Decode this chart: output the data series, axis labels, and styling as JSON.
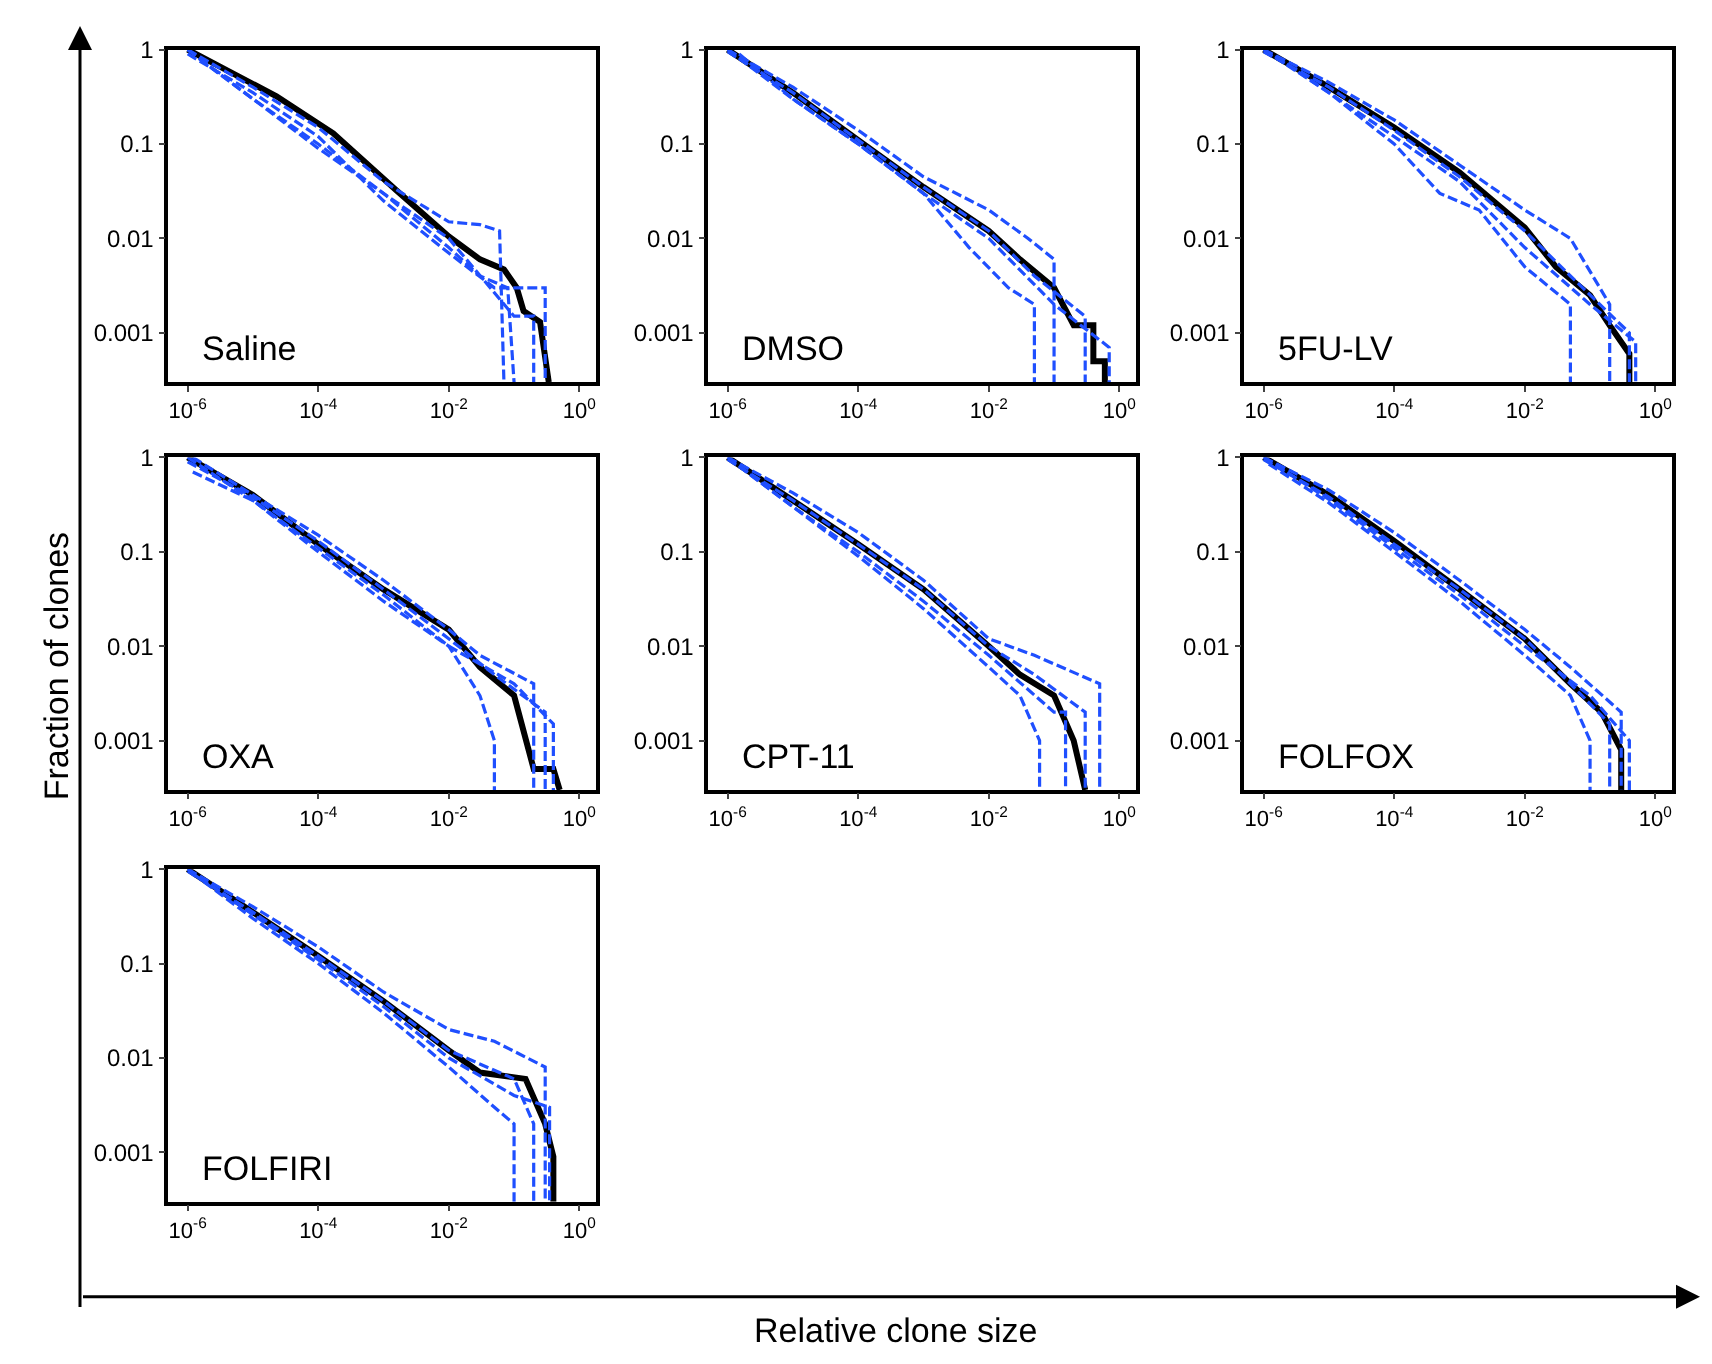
{
  "chart_data": [
    {
      "type": "line",
      "title": "Saline",
      "xlabel": "Relative clone size",
      "ylabel": "Fraction of clones",
      "log": "xy",
      "marker": "none",
      "xlim": [
        5e-07,
        1.8
      ],
      "ylim": [
        0.0003,
        1
      ],
      "xticks": [
        {
          "value": 1e-06,
          "label": "10$^{-6}$"
        },
        {
          "value": 0.0001,
          "label": "10$^{-4}$"
        },
        {
          "value": 0.01,
          "label": "10$^{-2}$"
        },
        {
          "value": 1,
          "label": "10$^{0}$"
        }
      ],
      "yticks": [
        1,
        0.1,
        0.01,
        0.001
      ],
      "series": [
        {
          "color": "#1f4fff",
          "line_style": "dashed",
          "x": [
            1e-06,
            1e-05,
            0.0001,
            0.001,
            0.01,
            0.03,
            0.06,
            0.07
          ],
          "values": [
            1,
            0.4,
            0.15,
            0.04,
            0.015,
            0.014,
            0.012,
            0.0003
          ]
        },
        {
          "color": "#1f4fff",
          "line_style": "dashed",
          "x": [
            1.5e-06,
            1e-05,
            0.0001,
            0.001,
            0.01,
            0.03,
            0.08,
            0.1
          ],
          "values": [
            0.8,
            0.3,
            0.1,
            0.03,
            0.008,
            0.004,
            0.003,
            0.0003
          ]
        },
        {
          "color": "#1f4fff",
          "line_style": "dashed",
          "x": [
            1e-06,
            1e-05,
            0.0001,
            0.001,
            0.01,
            0.05,
            0.3,
            0.3
          ],
          "values": [
            0.9,
            0.35,
            0.12,
            0.025,
            0.007,
            0.003,
            0.003,
            0.0003
          ]
        },
        {
          "color": "#1f4fff",
          "line_style": "dashed",
          "x": [
            1e-06,
            1e-05,
            0.0001,
            0.001,
            0.01,
            0.1,
            0.2,
            0.2
          ],
          "values": [
            1,
            0.3,
            0.09,
            0.03,
            0.01,
            0.0015,
            0.0015,
            0.0003
          ]
        },
        {
          "color": "#000000",
          "line_style": "solid",
          "x": [
            1e-06,
            2.3e-05,
            0.00017,
            0.0016,
            0.01,
            0.03,
            0.07,
            0.11,
            0.14,
            0.25,
            0.34
          ],
          "values": [
            1,
            0.32,
            0.13,
            0.032,
            0.0105,
            0.006,
            0.0047,
            0.003,
            0.0017,
            0.0013,
            0.0003
          ]
        }
      ]
    },
    {
      "type": "line",
      "title": "DMSO",
      "log": "xy",
      "marker": "none",
      "xlim": [
        5e-07,
        1.8
      ],
      "ylim": [
        0.0003,
        1
      ],
      "xticks": [
        {
          "value": 1e-06,
          "label": "10$^{-6}$"
        },
        {
          "value": 0.0001,
          "label": "10$^{-4}$"
        },
        {
          "value": 0.01,
          "label": "10$^{-2}$"
        },
        {
          "value": 1,
          "label": "10$^{0}$"
        }
      ],
      "yticks": [
        1,
        0.1,
        0.01,
        0.001
      ],
      "series": [
        {
          "color": "#1f4fff",
          "line_style": "dashed",
          "x": [
            1e-06,
            1e-05,
            0.0001,
            0.001,
            0.01,
            0.04,
            0.1,
            0.1
          ],
          "values": [
            1,
            0.4,
            0.14,
            0.045,
            0.02,
            0.01,
            0.006,
            0.0003
          ]
        },
        {
          "color": "#1f4fff",
          "line_style": "dashed",
          "x": [
            1.5e-06,
            1e-05,
            0.0001,
            0.001,
            0.005,
            0.02,
            0.05,
            0.05
          ],
          "values": [
            0.9,
            0.3,
            0.1,
            0.03,
            0.008,
            0.003,
            0.002,
            0.0003
          ]
        },
        {
          "color": "#1f4fff",
          "line_style": "dashed",
          "x": [
            1e-06,
            1e-05,
            0.0001,
            0.001,
            0.01,
            0.05,
            0.3,
            0.3
          ],
          "values": [
            0.95,
            0.35,
            0.11,
            0.035,
            0.012,
            0.004,
            0.0015,
            0.0003
          ]
        },
        {
          "color": "#1f4fff",
          "line_style": "dashed",
          "x": [
            1e-06,
            1e-05,
            0.0001,
            0.001,
            0.01,
            0.1,
            0.7,
            0.7
          ],
          "values": [
            1,
            0.3,
            0.1,
            0.03,
            0.01,
            0.002,
            0.0007,
            0.0003
          ]
        },
        {
          "color": "#000000",
          "line_style": "solid",
          "x": [
            1e-06,
            1e-05,
            0.0001,
            0.001,
            0.01,
            0.03,
            0.1,
            0.2,
            0.4,
            0.4,
            0.6,
            0.6
          ],
          "values": [
            1,
            0.35,
            0.11,
            0.035,
            0.012,
            0.006,
            0.003,
            0.0012,
            0.0012,
            0.0005,
            0.0005,
            0.0003
          ]
        }
      ]
    },
    {
      "type": "line",
      "title": "5FU-LV",
      "log": "xy",
      "marker": "none",
      "xlim": [
        5e-07,
        1.8
      ],
      "ylim": [
        0.0003,
        1
      ],
      "xticks": [
        {
          "value": 1e-06,
          "label": "10$^{-6}$"
        },
        {
          "value": 0.0001,
          "label": "10$^{-4}$"
        },
        {
          "value": 0.01,
          "label": "10$^{-2}$"
        },
        {
          "value": 1,
          "label": "10$^{0}$"
        }
      ],
      "yticks": [
        1,
        0.1,
        0.01,
        0.001
      ],
      "series": [
        {
          "color": "#1f4fff",
          "line_style": "dashed",
          "x": [
            1e-06,
            1e-05,
            0.0001,
            0.001,
            0.01,
            0.05,
            0.2,
            0.2
          ],
          "values": [
            1,
            0.45,
            0.18,
            0.06,
            0.02,
            0.01,
            0.002,
            0.0003
          ]
        },
        {
          "color": "#1f4fff",
          "line_style": "dashed",
          "x": [
            1.5e-06,
            1e-05,
            0.0001,
            0.0005,
            0.002,
            0.01,
            0.05,
            0.05
          ],
          "values": [
            0.85,
            0.35,
            0.1,
            0.03,
            0.02,
            0.005,
            0.002,
            0.0003
          ]
        },
        {
          "color": "#1f4fff",
          "line_style": "dashed",
          "x": [
            1e-06,
            1e-05,
            0.0001,
            0.001,
            0.01,
            0.05,
            0.4,
            0.4
          ],
          "values": [
            0.95,
            0.4,
            0.14,
            0.045,
            0.012,
            0.004,
            0.001,
            0.0003
          ]
        },
        {
          "color": "#1f4fff",
          "line_style": "dashed",
          "x": [
            1e-06,
            1e-05,
            0.0001,
            0.001,
            0.01,
            0.1,
            0.5,
            0.5
          ],
          "values": [
            1,
            0.35,
            0.12,
            0.04,
            0.008,
            0.002,
            0.0008,
            0.0003
          ]
        },
        {
          "color": "#000000",
          "line_style": "solid",
          "x": [
            1e-06,
            1e-05,
            0.0001,
            0.001,
            0.01,
            0.03,
            0.1,
            0.2,
            0.4,
            0.4
          ],
          "values": [
            1,
            0.4,
            0.15,
            0.05,
            0.013,
            0.005,
            0.0025,
            0.0012,
            0.0006,
            0.0003
          ]
        }
      ]
    },
    {
      "type": "line",
      "title": "OXA",
      "log": "xy",
      "marker": "none",
      "xlim": [
        5e-07,
        1.8
      ],
      "ylim": [
        0.0003,
        1
      ],
      "xticks": [
        {
          "value": 1e-06,
          "label": "10$^{-6}$"
        },
        {
          "value": 0.0001,
          "label": "10$^{-4}$"
        },
        {
          "value": 0.01,
          "label": "10$^{-2}$"
        },
        {
          "value": 1,
          "label": "10$^{0}$"
        }
      ],
      "yticks": [
        1,
        0.1,
        0.01,
        0.001
      ],
      "series": [
        {
          "color": "#1f4fff",
          "line_style": "dashed",
          "x": [
            1.2e-06,
            1e-05,
            0.0001,
            0.001,
            0.01,
            0.03,
            0.2,
            0.2
          ],
          "values": [
            1,
            0.4,
            0.15,
            0.05,
            0.015,
            0.008,
            0.004,
            0.0003
          ]
        },
        {
          "color": "#1f4fff",
          "line_style": "dashed",
          "x": [
            1.2e-06,
            1e-05,
            0.0001,
            0.001,
            0.01,
            0.03,
            0.05,
            0.05
          ],
          "values": [
            0.7,
            0.35,
            0.1,
            0.03,
            0.01,
            0.003,
            0.001,
            0.0003
          ]
        },
        {
          "color": "#1f4fff",
          "line_style": "dashed",
          "x": [
            1e-06,
            1e-05,
            0.0001,
            0.001,
            0.01,
            0.05,
            0.3,
            0.3
          ],
          "values": [
            0.9,
            0.38,
            0.13,
            0.04,
            0.012,
            0.005,
            0.002,
            0.0003
          ]
        },
        {
          "color": "#1f4fff",
          "line_style": "dashed",
          "x": [
            1e-06,
            1e-05,
            0.0001,
            0.001,
            0.01,
            0.1,
            0.4,
            0.4
          ],
          "values": [
            1,
            0.35,
            0.11,
            0.035,
            0.01,
            0.004,
            0.0015,
            0.0003
          ]
        },
        {
          "color": "#000000",
          "line_style": "solid",
          "x": [
            1e-06,
            1e-05,
            0.0001,
            0.001,
            0.01,
            0.03,
            0.1,
            0.2,
            0.4,
            0.5
          ],
          "values": [
            1,
            0.4,
            0.12,
            0.04,
            0.015,
            0.006,
            0.003,
            0.0005,
            0.0005,
            0.0003
          ]
        }
      ]
    },
    {
      "type": "line",
      "title": "CPT-11",
      "log": "xy",
      "marker": "none",
      "xlim": [
        5e-07,
        1.8
      ],
      "ylim": [
        0.0003,
        1
      ],
      "xticks": [
        {
          "value": 1e-06,
          "label": "10$^{-6}$"
        },
        {
          "value": 0.0001,
          "label": "10$^{-4}$"
        },
        {
          "value": 0.01,
          "label": "10$^{-2}$"
        },
        {
          "value": 1,
          "label": "10$^{0}$"
        }
      ],
      "yticks": [
        1,
        0.1,
        0.01,
        0.001
      ],
      "series": [
        {
          "color": "#1f4fff",
          "line_style": "dashed",
          "x": [
            1e-06,
            1e-05,
            0.0001,
            0.001,
            0.01,
            0.05,
            0.5,
            0.5
          ],
          "values": [
            1,
            0.42,
            0.16,
            0.05,
            0.012,
            0.008,
            0.004,
            0.0003
          ]
        },
        {
          "color": "#1f4fff",
          "line_style": "dashed",
          "x": [
            1.5e-06,
            1e-05,
            0.0001,
            0.001,
            0.01,
            0.03,
            0.06,
            0.06
          ],
          "values": [
            0.8,
            0.3,
            0.09,
            0.025,
            0.006,
            0.003,
            0.001,
            0.0003
          ]
        },
        {
          "color": "#1f4fff",
          "line_style": "dashed",
          "x": [
            1e-06,
            1e-05,
            0.0001,
            0.001,
            0.01,
            0.05,
            0.3,
            0.3
          ],
          "values": [
            0.95,
            0.35,
            0.12,
            0.04,
            0.01,
            0.005,
            0.002,
            0.0003
          ]
        },
        {
          "color": "#1f4fff",
          "line_style": "dashed",
          "x": [
            1e-06,
            1e-05,
            0.0001,
            0.001,
            0.01,
            0.1,
            0.15,
            0.15
          ],
          "values": [
            1,
            0.3,
            0.1,
            0.03,
            0.008,
            0.002,
            0.002,
            0.0003
          ]
        },
        {
          "color": "#000000",
          "line_style": "solid",
          "x": [
            1e-06,
            1e-05,
            0.0001,
            0.001,
            0.01,
            0.03,
            0.1,
            0.2,
            0.3
          ],
          "values": [
            1,
            0.35,
            0.12,
            0.04,
            0.01,
            0.005,
            0.003,
            0.001,
            0.0003
          ]
        }
      ]
    },
    {
      "type": "line",
      "title": "FOLFOX",
      "log": "xy",
      "marker": "none",
      "xlim": [
        5e-07,
        1.8
      ],
      "ylim": [
        0.0003,
        1
      ],
      "xticks": [
        {
          "value": 1e-06,
          "label": "10$^{-6}$"
        },
        {
          "value": 0.0001,
          "label": "10$^{-4}$"
        },
        {
          "value": 0.01,
          "label": "10$^{-2}$"
        },
        {
          "value": 1,
          "label": "10$^{0}$"
        }
      ],
      "yticks": [
        1,
        0.1,
        0.01,
        0.001
      ],
      "series": [
        {
          "color": "#1f4fff",
          "line_style": "dashed",
          "x": [
            1e-06,
            1e-05,
            0.0001,
            0.001,
            0.01,
            0.05,
            0.3,
            0.3
          ],
          "values": [
            1,
            0.45,
            0.16,
            0.05,
            0.015,
            0.006,
            0.002,
            0.0003
          ]
        },
        {
          "color": "#1f4fff",
          "line_style": "dashed",
          "x": [
            1.2e-06,
            1e-05,
            0.0001,
            0.001,
            0.01,
            0.05,
            0.1,
            0.1
          ],
          "values": [
            0.85,
            0.33,
            0.1,
            0.03,
            0.008,
            0.003,
            0.001,
            0.0003
          ]
        },
        {
          "color": "#1f4fff",
          "line_style": "dashed",
          "x": [
            1e-06,
            1e-05,
            0.0001,
            0.001,
            0.01,
            0.05,
            0.2,
            0.2
          ],
          "values": [
            0.95,
            0.38,
            0.12,
            0.04,
            0.012,
            0.004,
            0.0015,
            0.0003
          ]
        },
        {
          "color": "#1f4fff",
          "line_style": "dashed",
          "x": [
            1e-06,
            1e-05,
            0.0001,
            0.001,
            0.01,
            0.1,
            0.4,
            0.4
          ],
          "values": [
            1,
            0.36,
            0.11,
            0.035,
            0.01,
            0.003,
            0.001,
            0.0003
          ]
        },
        {
          "color": "#000000",
          "line_style": "solid",
          "x": [
            1e-06,
            1e-05,
            0.0001,
            0.001,
            0.01,
            0.05,
            0.15,
            0.3,
            0.3
          ],
          "values": [
            1,
            0.4,
            0.13,
            0.04,
            0.012,
            0.004,
            0.002,
            0.0008,
            0.0003
          ]
        }
      ]
    },
    {
      "type": "line",
      "title": "FOLFIRI",
      "log": "xy",
      "marker": "none",
      "xlim": [
        5e-07,
        1.8
      ],
      "ylim": [
        0.0003,
        1
      ],
      "xticks": [
        {
          "value": 1e-06,
          "label": "10$^{-6}$"
        },
        {
          "value": 0.0001,
          "label": "10$^{-4}$"
        },
        {
          "value": 0.01,
          "label": "10$^{-2}$"
        },
        {
          "value": 1,
          "label": "10$^{0}$"
        }
      ],
      "yticks": [
        1,
        0.1,
        0.01,
        0.001
      ],
      "series": [
        {
          "color": "#1f4fff",
          "line_style": "dashed",
          "x": [
            1e-06,
            1e-05,
            0.0001,
            0.001,
            0.01,
            0.05,
            0.3,
            0.3
          ],
          "values": [
            1,
            0.4,
            0.15,
            0.05,
            0.02,
            0.015,
            0.008,
            0.0003
          ]
        },
        {
          "color": "#1f4fff",
          "line_style": "dashed",
          "x": [
            1.2e-06,
            1e-05,
            0.0001,
            0.001,
            0.01,
            0.05,
            0.1,
            0.1
          ],
          "values": [
            0.9,
            0.3,
            0.1,
            0.03,
            0.008,
            0.003,
            0.002,
            0.0003
          ]
        },
        {
          "color": "#1f4fff",
          "line_style": "dashed",
          "x": [
            1e-06,
            1e-05,
            0.0001,
            0.001,
            0.01,
            0.1,
            0.2,
            0.2
          ],
          "values": [
            0.95,
            0.35,
            0.12,
            0.04,
            0.012,
            0.006,
            0.002,
            0.0003
          ]
        },
        {
          "color": "#1f4fff",
          "line_style": "dashed",
          "x": [
            1e-06,
            1e-05,
            0.0001,
            0.001,
            0.01,
            0.1,
            0.35,
            0.35
          ],
          "values": [
            1,
            0.33,
            0.11,
            0.035,
            0.01,
            0.004,
            0.003,
            0.0003
          ]
        },
        {
          "color": "#000000",
          "line_style": "solid",
          "x": [
            1e-06,
            1e-05,
            0.0001,
            0.001,
            0.01,
            0.03,
            0.15,
            0.3,
            0.4,
            0.4
          ],
          "values": [
            1,
            0.35,
            0.12,
            0.04,
            0.012,
            0.007,
            0.006,
            0.002,
            0.0009,
            0.0003
          ]
        }
      ]
    }
  ]
}
